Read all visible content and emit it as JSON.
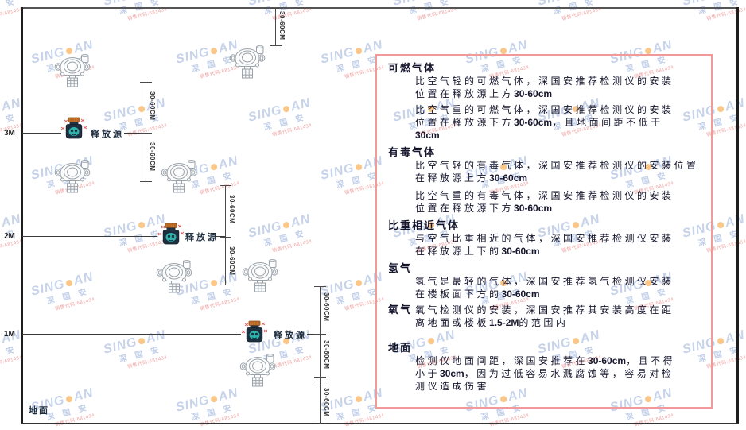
{
  "watermark": {
    "brand_left": "SING",
    "brand_right": "AN",
    "cn": "深 国 安",
    "code": "销售代码:681434"
  },
  "diagram": {
    "heights": [
      "3M",
      "2M",
      "1M"
    ],
    "source_label": "释放源",
    "ground_label": "地面",
    "dim_label": "30-60CM"
  },
  "panel": {
    "sections": [
      {
        "title": "可燃气体",
        "paras": [
          "比空气轻的可燃气体，深国安推荐检测仪的安装\n位置在释放源上方30-60cm",
          "比空气重的可燃气体，深国安推荐检测仪的安装\n位置在释放源下方30-60cm，且地面间距不低于\n30cm"
        ]
      },
      {
        "title": "有毒气体",
        "paras": [
          "比空气轻的有毒气体，深国安推荐检测仪的安装位置\n在释放源上方30-60cm",
          "比空气重的有毒气体，深国安推荐检测仪的安装\n位置在释放源下方30-60cm"
        ]
      },
      {
        "title": "比重相近气体",
        "paras": [
          "与空气比重相近的气体，深国安推荐检测仪安装\n在释放源上下的30-60cm"
        ]
      },
      {
        "title": "氢气",
        "paras": [
          "氢气是最轻的气体，深国安推荐氢气检测仪安装\n在楼板面下方的30-60cm"
        ]
      },
      {
        "title": "氧气",
        "paras": [
          "氧气检测仪的安装，深国安推荐其安装高度在距\n离地面或楼板1.5-2M的范围内"
        ]
      },
      {
        "title": "地面",
        "paras": [
          "检测仪地面间距，深国安推荐在30-60cm，且不得\n小于30cm，因为过低容易水溅腐蚀等，容易对检\n测仪造成伤害"
        ]
      }
    ]
  }
}
